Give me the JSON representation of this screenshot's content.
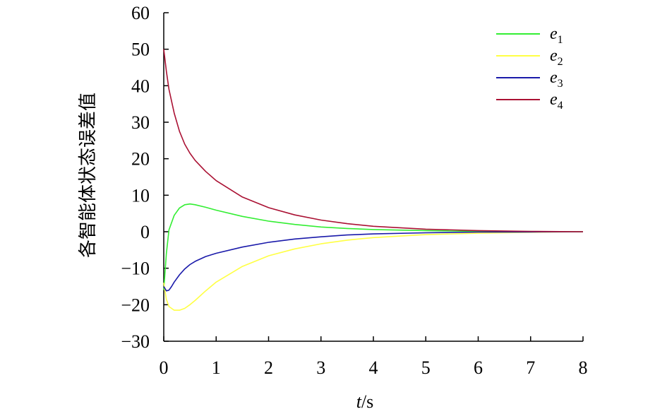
{
  "chart_data": {
    "type": "line",
    "xlabel_var": "t",
    "xlabel_unit": "/s",
    "ylabel": "各智能体状态误差值",
    "xlim": [
      0,
      8
    ],
    "ylim": [
      -30,
      60
    ],
    "x_ticks": [
      "0",
      "1",
      "2",
      "3",
      "4",
      "5",
      "6",
      "7",
      "8"
    ],
    "y_ticks": [
      "60",
      "50",
      "40",
      "30",
      "20",
      "10",
      "0",
      "−10",
      "−20",
      "−30"
    ],
    "grid": false,
    "legend_position": "top-right",
    "series": [
      {
        "name": "e",
        "sub": "1",
        "color": "#33ee33",
        "x": [
          0,
          0.05,
          0.1,
          0.2,
          0.3,
          0.4,
          0.5,
          0.6,
          0.8,
          1.0,
          1.5,
          2.0,
          2.5,
          3.0,
          3.5,
          4.0,
          5.0,
          6.0,
          7.0,
          8.0
        ],
        "y": [
          -16,
          -6,
          0.5,
          4.5,
          6.5,
          7.4,
          7.6,
          7.4,
          6.7,
          5.9,
          4.2,
          2.9,
          2.0,
          1.3,
          0.9,
          0.6,
          0.3,
          0.1,
          0.05,
          0
        ]
      },
      {
        "name": "e",
        "sub": "2",
        "color": "#ffff44",
        "x": [
          0,
          0.05,
          0.1,
          0.2,
          0.3,
          0.4,
          0.5,
          0.6,
          0.8,
          1.0,
          1.5,
          2.0,
          2.5,
          3.0,
          3.5,
          4.0,
          5.0,
          6.0,
          7.0,
          8.0
        ],
        "y": [
          -14,
          -18.5,
          -20.5,
          -21.5,
          -21.5,
          -21,
          -20,
          -18.8,
          -16.2,
          -13.8,
          -9.5,
          -6.6,
          -4.7,
          -3.3,
          -2.3,
          -1.6,
          -0.8,
          -0.4,
          -0.15,
          0
        ]
      },
      {
        "name": "e",
        "sub": "3",
        "color": "#1a1aaa",
        "x": [
          0,
          0.05,
          0.1,
          0.15,
          0.2,
          0.3,
          0.4,
          0.5,
          0.6,
          0.8,
          1.0,
          1.5,
          2.0,
          2.5,
          3.0,
          3.5,
          4.0,
          5.0,
          6.0,
          7.0,
          8.0
        ],
        "y": [
          -15,
          -16.2,
          -16,
          -15,
          -13.8,
          -11.8,
          -10.2,
          -9,
          -8.1,
          -6.8,
          -5.9,
          -4.2,
          -2.9,
          -2.0,
          -1.4,
          -0.9,
          -0.6,
          -0.3,
          -0.1,
          -0.05,
          0
        ]
      },
      {
        "name": "e",
        "sub": "4",
        "color": "#aa1133",
        "x": [
          0,
          0.05,
          0.1,
          0.2,
          0.3,
          0.4,
          0.5,
          0.6,
          0.8,
          1.0,
          1.5,
          2.0,
          2.5,
          3.0,
          3.5,
          4.0,
          5.0,
          6.0,
          7.0,
          8.0
        ],
        "y": [
          50,
          44,
          39,
          32.5,
          27.5,
          24,
          21.5,
          19.5,
          16.5,
          14,
          9.5,
          6.6,
          4.6,
          3.2,
          2.2,
          1.5,
          0.7,
          0.3,
          0.1,
          0
        ]
      }
    ]
  }
}
